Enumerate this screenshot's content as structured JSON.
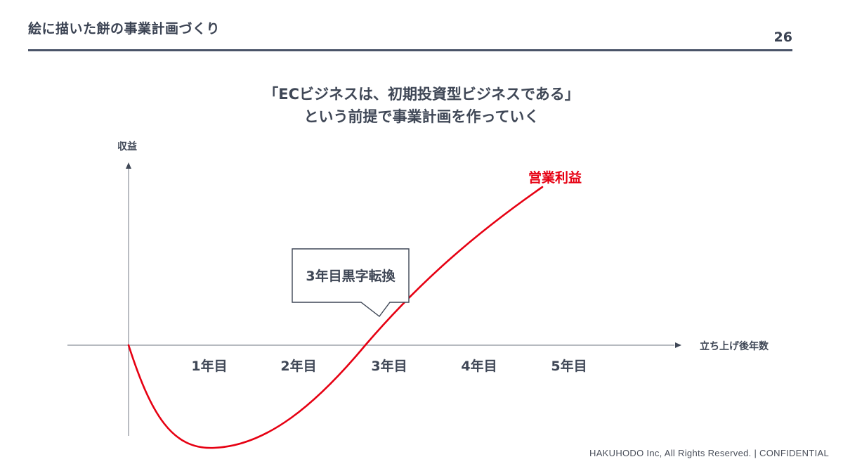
{
  "header": {
    "title": "絵に描いた餅の事業計画づくり",
    "page_number": "26"
  },
  "headline": {
    "line1": "「ECビジネスは、初期投資型ビジネスである」",
    "line2": "という前提で事業計画を作っていく"
  },
  "diagram": {
    "y_axis_label": "収益",
    "x_axis_label": "立ち上げ後年数",
    "ticks": [
      "1年目",
      "2年目",
      "3年目",
      "4年目",
      "5年目"
    ],
    "series_label": "営業利益",
    "series_color": "#e60012",
    "callout": "3年目黒字転換"
  },
  "footer": {
    "text": "HAKUHODO  Inc, All  Rights  Reserved. | CONFIDENTIAL"
  }
}
